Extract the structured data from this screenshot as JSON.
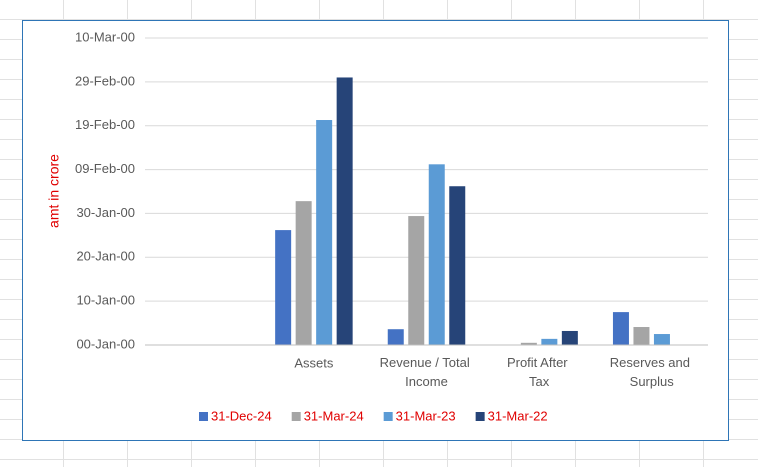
{
  "chart_data": {
    "type": "bar",
    "y_label": "amt in crore",
    "categories": [
      null,
      "Assets",
      "Revenue / Total Income",
      "Profit After Tax",
      "Reserves and Surplus"
    ],
    "series": [
      {
        "name": "31-Dec-24",
        "color": "#4472c4",
        "values": [
          null,
          26.2,
          3.6,
          0,
          7.5
        ]
      },
      {
        "name": "31-Mar-24",
        "color": "#a5a5a5",
        "values": [
          null,
          32.8,
          29.4,
          0.5,
          4.1
        ]
      },
      {
        "name": "31-Mar-23",
        "color": "#5b9bd5",
        "values": [
          null,
          51.3,
          41.2,
          1.4,
          2.5
        ]
      },
      {
        "name": "31-Mar-22",
        "color": "#264478",
        "values": [
          null,
          61.0,
          36.2,
          3.2,
          null
        ]
      }
    ],
    "ylim": [
      0,
      70
    ],
    "yticks": [
      {
        "value": 0,
        "label": "00-Jan-00"
      },
      {
        "value": 10,
        "label": "10-Jan-00"
      },
      {
        "value": 20,
        "label": "20-Jan-00"
      },
      {
        "value": 30,
        "label": "30-Jan-00"
      },
      {
        "value": 40,
        "label": "09-Feb-00"
      },
      {
        "value": 50,
        "label": "19-Feb-00"
      },
      {
        "value": 60,
        "label": "29-Feb-00"
      },
      {
        "value": 70,
        "label": "10-Mar-00"
      }
    ],
    "grid": true,
    "legend": "bottom"
  }
}
